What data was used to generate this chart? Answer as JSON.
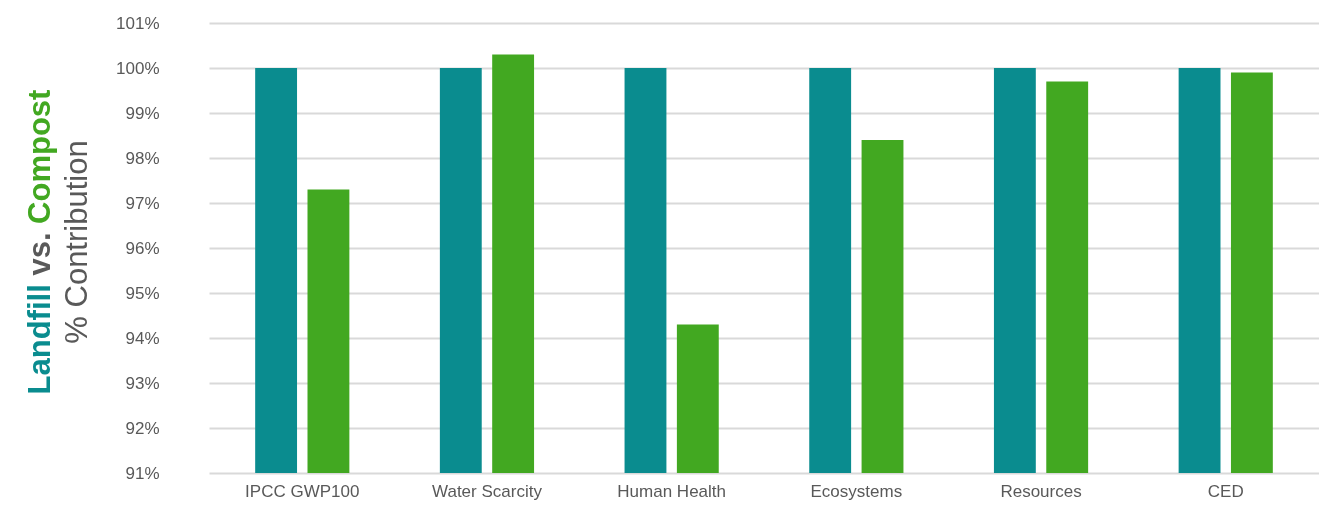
{
  "chart_data": {
    "type": "bar",
    "ylabel": "% Contribution",
    "legend_title": "vs.",
    "legend": "left",
    "categories": [
      "IPCC GWP100",
      "Water Scarcity",
      "Human Health",
      "Ecosystems",
      "Resources",
      "CED"
    ],
    "series": [
      {
        "name": "Landfill",
        "color": "#0a8c8f",
        "values": [
          100,
          100,
          100,
          100,
          100,
          100
        ]
      },
      {
        "name": "Compost",
        "color": "#42a821",
        "values": [
          97.3,
          100.3,
          94.3,
          98.4,
          99.7,
          99.9
        ]
      }
    ],
    "ylim": [
      91,
      101
    ],
    "yticks": [
      {
        "value": 91,
        "label": "91%"
      },
      {
        "value": 92,
        "label": "92%"
      },
      {
        "value": 93,
        "label": "93%"
      },
      {
        "value": 94,
        "label": "94%"
      },
      {
        "value": 95,
        "label": "95%"
      },
      {
        "value": 96,
        "label": "96%"
      },
      {
        "value": 97,
        "label": "97%"
      },
      {
        "value": 98,
        "label": "98%"
      },
      {
        "value": 99,
        "label": "99%"
      },
      {
        "value": 100,
        "label": "100%"
      },
      {
        "value": 101,
        "label": "101%"
      }
    ],
    "grid": "y"
  }
}
